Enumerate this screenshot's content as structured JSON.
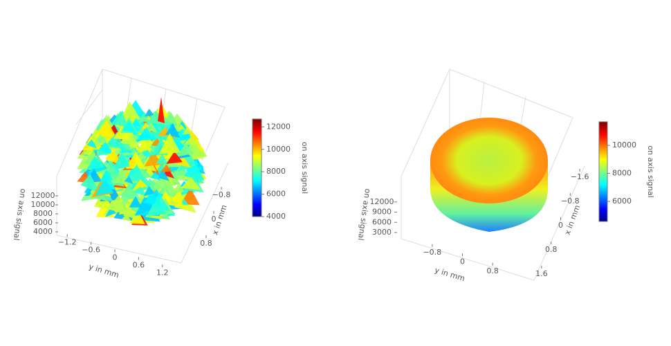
{
  "chart_data": [
    {
      "type": "surface3d",
      "colormap": "jet",
      "xlabel": "y in mm",
      "ylabel": "x in mm",
      "zlabel": "on axis signal",
      "xlim": [
        -1.5,
        1.5
      ],
      "xticks": [
        {
          "value": -1.2,
          "label": "−1.2"
        },
        {
          "value": -0.6,
          "label": "−0.6"
        },
        0.0,
        0.6,
        1.2
      ],
      "ylim": [
        -1.2,
        1.2
      ],
      "yticks": [
        {
          "value": -0.8,
          "label": "−0.8"
        },
        0.0,
        0.8
      ],
      "zlim": [
        3000,
        13000
      ],
      "zticks": [
        4000,
        6000,
        8000,
        10000,
        12000
      ],
      "colorbar": {
        "label": "on axis signal",
        "lim": [
          4000,
          12700
        ],
        "ticks": [
          4000,
          6000,
          8000,
          10000,
          12000
        ]
      }
    },
    {
      "type": "surface3d",
      "colormap": "jet",
      "xlabel": "y in mm",
      "ylabel": "x in mm",
      "zlabel": "on axis signal",
      "xlim": [
        -1.2,
        1.2
      ],
      "xticks": [
        {
          "value": -0.8,
          "label": "−0.8"
        },
        0.0,
        0.8
      ],
      "ylim": [
        -2,
        2
      ],
      "yticks": [
        {
          "value": -1.6,
          "label": "−1.6"
        },
        {
          "value": -0.8,
          "label": "−0.8"
        },
        0.0,
        0.8,
        1.6
      ],
      "zlim": [
        1500,
        13500
      ],
      "zticks": [
        3000,
        6000,
        9000,
        12000
      ],
      "colorbar": {
        "label": "on axis signal",
        "lim": [
          4570,
          11680
        ],
        "ticks": [
          6000,
          8000,
          10000
        ]
      }
    }
  ]
}
